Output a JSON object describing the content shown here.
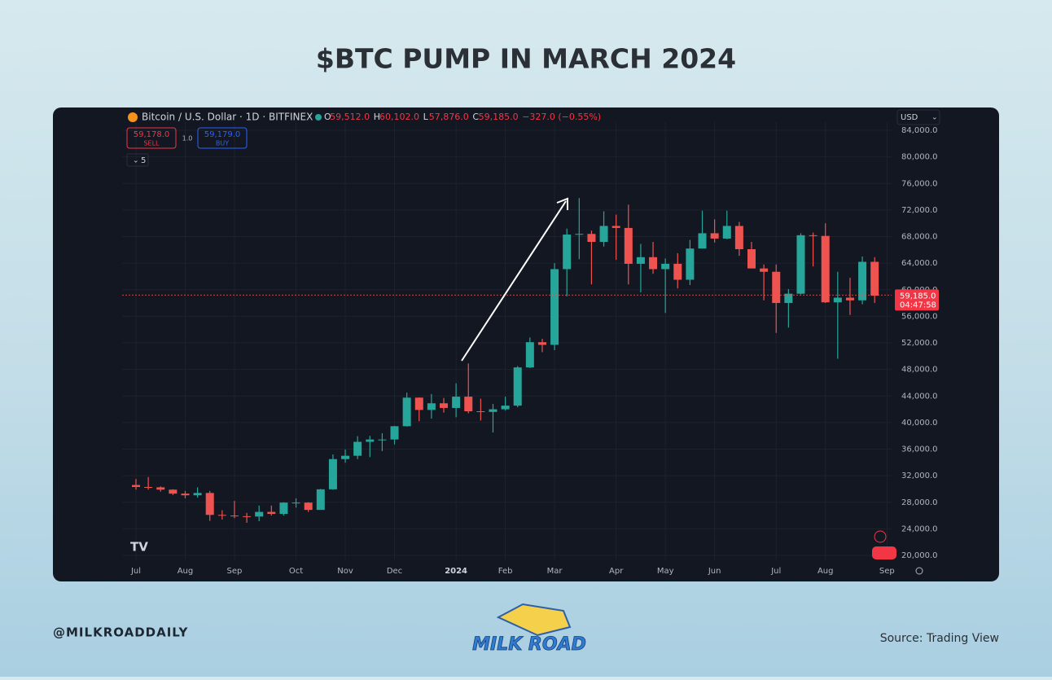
{
  "chart_data": {
    "type": "candlestick",
    "title": "$BTC PUMP IN MARCH 2024",
    "categories": [
      "Jul",
      null,
      null,
      null,
      "Aug",
      null,
      null,
      null,
      "Sep",
      null,
      null,
      null,
      null,
      "Oct",
      null,
      null,
      null,
      "Nov",
      null,
      null,
      null,
      "Dec",
      null,
      null,
      null,
      null,
      "2024",
      null,
      null,
      null,
      "Feb",
      null,
      null,
      null,
      "Mar",
      null,
      null,
      null,
      null,
      "Apr",
      null,
      null,
      null,
      "May",
      null,
      null,
      null,
      "Jun",
      null,
      null,
      null,
      null,
      "Jul",
      null,
      null,
      null,
      "Aug",
      null,
      null,
      null,
      null,
      "Sep"
    ],
    "open": [
      30600,
      30300,
      30250,
      29900,
      29300,
      29050,
      29400,
      26100,
      26000,
      25900,
      25850,
      26550,
      26250,
      27950,
      27950,
      26850,
      29950,
      34500,
      35000,
      37100,
      37450,
      37450,
      39450,
      43750,
      41900,
      42900,
      42200,
      43900,
      41700,
      41600,
      42000,
      42550,
      48300,
      52100,
      51700,
      63100,
      68300,
      68400,
      67200,
      69600,
      69300,
      63900,
      64900,
      63100,
      63900,
      61500,
      66200,
      68500,
      67700,
      69600,
      66100,
      63200,
      62700,
      58000,
      59400,
      68200,
      68100,
      58100,
      58800,
      58400,
      64200,
      null
    ],
    "high": [
      31500,
      31800,
      30400,
      29950,
      29700,
      30250,
      29700,
      26800,
      28200,
      26400,
      27500,
      27500,
      28000,
      28600,
      28000,
      30000,
      35200,
      35950,
      37950,
      38000,
      38400,
      39500,
      44500,
      43800,
      44300,
      43700,
      45900,
      48900,
      43600,
      42800,
      43900,
      48500,
      52800,
      52600,
      64000,
      69200,
      73800,
      68900,
      71800,
      71300,
      72800,
      66900,
      67200,
      64700,
      65500,
      67500,
      71900,
      70600,
      71900,
      70200,
      67200,
      63800,
      63800,
      60100,
      68500,
      68600,
      70000,
      62700,
      61800,
      65000,
      64900,
      null
    ],
    "low": [
      29900,
      29900,
      29600,
      29100,
      28600,
      28700,
      25200,
      25400,
      25600,
      24900,
      25150,
      26000,
      26000,
      27200,
      26550,
      26900,
      29900,
      33950,
      34500,
      34800,
      35700,
      36700,
      39400,
      40200,
      40600,
      41500,
      40800,
      41400,
      40300,
      38500,
      41800,
      42300,
      48200,
      50600,
      50900,
      59000,
      64600,
      60800,
      66500,
      64500,
      60800,
      59600,
      62400,
      56500,
      60200,
      60700,
      66200,
      67100,
      67600,
      65100,
      63400,
      58400,
      53500,
      54300,
      59300,
      63500,
      58000,
      49600,
      56200,
      57800,
      58000,
      null
    ],
    "close": [
      30300,
      30250,
      29900,
      29300,
      29050,
      29400,
      26100,
      26000,
      25900,
      25850,
      26550,
      26250,
      27950,
      27950,
      26850,
      29950,
      34500,
      35000,
      37100,
      37450,
      37450,
      39450,
      43750,
      41900,
      42900,
      42200,
      43900,
      41700,
      41600,
      42000,
      42550,
      48300,
      52100,
      51700,
      63100,
      68300,
      68400,
      67200,
      69600,
      69300,
      63900,
      64900,
      63100,
      63900,
      61500,
      66200,
      68500,
      67700,
      69600,
      66100,
      63200,
      62700,
      58000,
      59400,
      68200,
      68100,
      58100,
      58800,
      58400,
      64200,
      59100,
      null
    ],
    "up_color": "#26a69a",
    "down_color": "#ef5350",
    "ylim": [
      20000,
      84000
    ],
    "yticks": [
      {
        "value": 20000,
        "label": "20,000.0"
      },
      {
        "value": 24000,
        "label": "24,000.0"
      },
      {
        "value": 28000,
        "label": "28,000.0"
      },
      {
        "value": 32000,
        "label": "32,000.0"
      },
      {
        "value": 36000,
        "label": "36,000.0"
      },
      {
        "value": 40000,
        "label": "40,000.0"
      },
      {
        "value": 44000,
        "label": "44,000.0"
      },
      {
        "value": 48000,
        "label": "48,000.0"
      },
      {
        "value": 52000,
        "label": "52,000.0"
      },
      {
        "value": 56000,
        "label": "56,000.0"
      },
      {
        "value": 60000,
        "label": "60,000.0"
      },
      {
        "value": 64000,
        "label": "64,000.0"
      },
      {
        "value": 68000,
        "label": "68,000.0"
      },
      {
        "value": 72000,
        "label": "72,000.0"
      },
      {
        "value": 76000,
        "label": "76,000.0"
      },
      {
        "value": 80000,
        "label": "80,000.0"
      },
      {
        "value": 84000,
        "label": "84,000.0"
      }
    ],
    "grid": true,
    "last_price": {
      "value": 59185,
      "label": "59,185.0",
      "countdown": "04:47:58"
    }
  },
  "header": {
    "symbol": "Bitcoin / U.S. Dollar · 1D · BITFINEX",
    "ohlc": [
      {
        "key": "O",
        "value": "59,512.0"
      },
      {
        "key": "H",
        "value": "60,102.0"
      },
      {
        "key": "L",
        "value": "57,876.0"
      },
      {
        "key": "C",
        "value": "59,185.0"
      }
    ],
    "change": "−327.0 (−0.55%)",
    "sell_price": "59,178.0",
    "sell": "SELL",
    "spread": "1.0",
    "buy_price": "59,179.0",
    "buy": "BUY",
    "indicators": "5",
    "currency": "USD"
  },
  "footer": {
    "handle": "@MILKROADDAILY",
    "logo": "MILK ROAD",
    "source": "Source: Trading View"
  }
}
